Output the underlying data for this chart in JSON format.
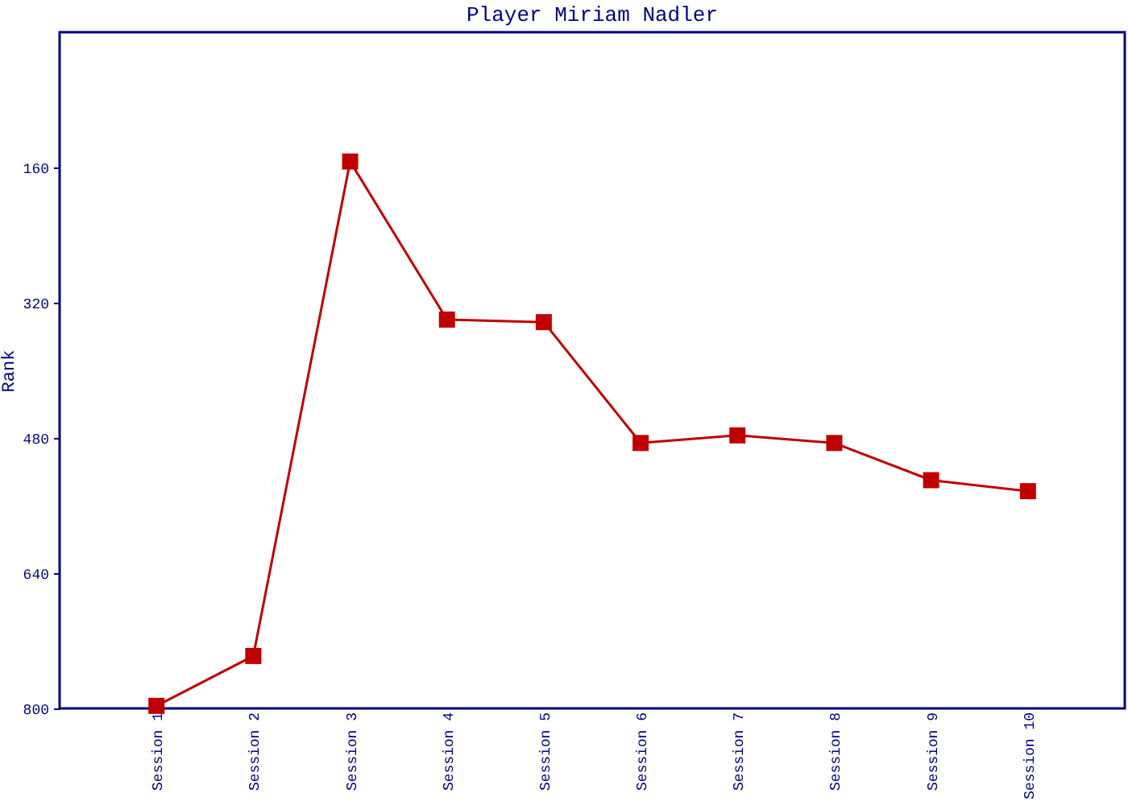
{
  "chart_data": {
    "type": "line",
    "title": "Player Miriam Nadler",
    "ylabel": "Rank",
    "categories": [
      "Session 1",
      "Session 2",
      "Session 3",
      "Session 4",
      "Session 5",
      "Session 6",
      "Session 7",
      "Session 8",
      "Session 9",
      "Session 10"
    ],
    "series": [
      {
        "color": "#c00000",
        "values": [
          797,
          738,
          153,
          340,
          343,
          486,
          477,
          486,
          530,
          543
        ]
      }
    ],
    "ylim": [
      800,
      0
    ],
    "yticks": [
      160,
      320,
      480,
      640,
      800
    ],
    "grid": false,
    "legend": false,
    "marker": "square",
    "line_style": "solid"
  }
}
